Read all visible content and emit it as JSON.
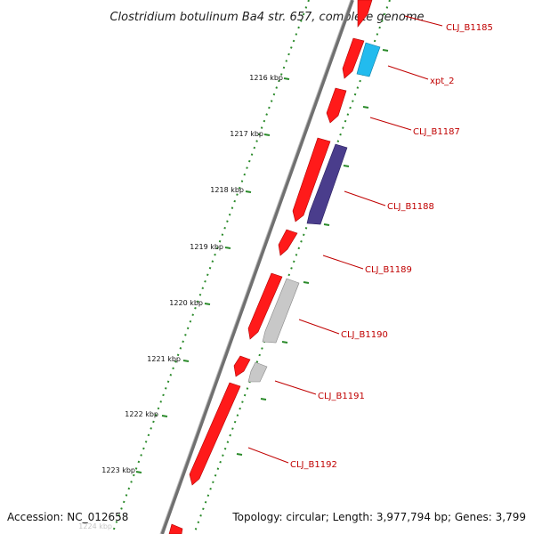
{
  "title": "Clostridium botulinum Ba4 str. 657, complete genome",
  "accession_text": "Accession: NC_012658",
  "topology_text": "Topology: circular; Length: 3,977,794 bp; Genes: 3,799",
  "colors": {
    "forward_gene": "#ff1a1a",
    "reverse_red": "#e60000",
    "xpt_gene": "#22bbee",
    "indigo_gene": "#4a3d8c",
    "gray_gene": "#c8c8c8",
    "label": "#c00000",
    "tick": "#2a8a2a",
    "backbone": "#808080"
  },
  "kbp_labels": [
    "1216 kbp",
    "1217 kbp",
    "1218 kbp",
    "1219 kbp",
    "1220 kbp",
    "1221 kbp",
    "1222 kbp",
    "1223 kbp",
    "1224 kbp"
  ],
  "gene_labels": [
    "CLJ_B1185",
    "xpt_2",
    "CLJ_B1187",
    "CLJ_B1188",
    "CLJ_B1189",
    "CLJ_B1190",
    "CLJ_B1191",
    "CLJ_B1192"
  ]
}
